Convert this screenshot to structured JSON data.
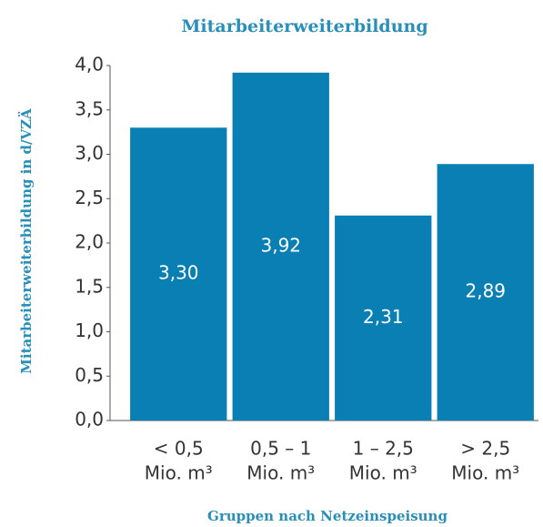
{
  "chart_data": {
    "type": "bar",
    "title": "Mitarbeiterweiterbildung",
    "x_label": "Gruppen nach Netzeinspeisung",
    "y_label": "Mitarbeiterweiterbildung in d/VZÄ",
    "categories": [
      [
        "< 0,5",
        "Mio. m³"
      ],
      [
        "0,5 – 1",
        "Mio. m³"
      ],
      [
        "1 – 2,5",
        "Mio. m³"
      ],
      [
        "> 2,5",
        "Mio. m³"
      ]
    ],
    "values": [
      3.3,
      3.92,
      2.31,
      2.89
    ],
    "value_labels": [
      "3,30",
      "3,92",
      "2,31",
      "2,89"
    ],
    "color": "#0a7fb4",
    "ylim": [
      0,
      4
    ],
    "yticks": [
      {
        "value": 0,
        "label": "0,0"
      },
      {
        "value": 0.5,
        "label": "0,5"
      },
      {
        "value": 1,
        "label": "1,0"
      },
      {
        "value": 1.5,
        "label": "1,5"
      },
      {
        "value": 2,
        "label": "2,0"
      },
      {
        "value": 2.5,
        "label": "2,5"
      },
      {
        "value": 3,
        "label": "3,0"
      },
      {
        "value": 3.5,
        "label": "3,5"
      },
      {
        "value": 4,
        "label": "4,0"
      }
    ],
    "grid": false
  }
}
